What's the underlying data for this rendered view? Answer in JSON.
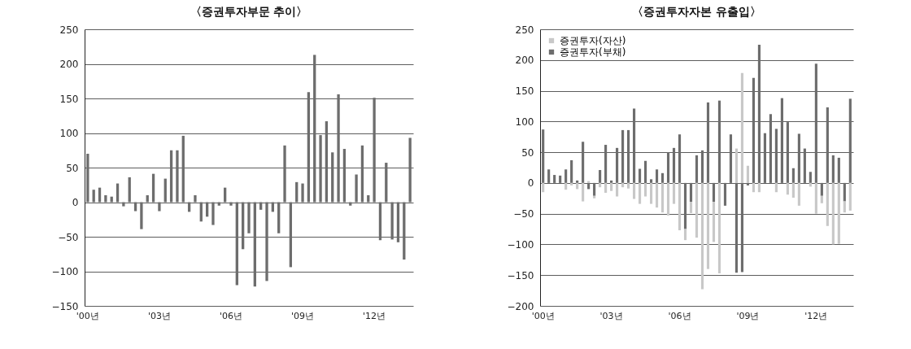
{
  "chart_data": [
    {
      "type": "bar",
      "title": "〈증권투자부문 추이〉",
      "categories": [
        "'00년",
        null,
        null,
        null,
        null,
        null,
        null,
        null,
        null,
        null,
        null,
        null,
        "'03년",
        null,
        null,
        null,
        null,
        null,
        null,
        null,
        null,
        null,
        null,
        null,
        "'06년",
        null,
        null,
        null,
        null,
        null,
        null,
        null,
        null,
        null,
        null,
        null,
        "'09년",
        null,
        null,
        null,
        null,
        null,
        null,
        null,
        null,
        null,
        null,
        null,
        "'12년",
        null,
        null,
        null,
        null,
        null,
        null
      ],
      "values": [
        70,
        18,
        21,
        10,
        8,
        27,
        -6,
        36,
        -13,
        -39,
        10,
        41,
        -13,
        34,
        75,
        75,
        96,
        -14,
        10,
        -28,
        -21,
        -33,
        -5,
        21,
        -5,
        -120,
        -68,
        -45,
        -122,
        -11,
        -114,
        -14,
        -45,
        82,
        -94,
        29,
        27,
        159,
        213,
        97,
        117,
        72,
        156,
        77,
        -5,
        40,
        82,
        10,
        151,
        -55,
        57,
        -54,
        -58,
        -83,
        93
      ],
      "color": "#6d6d6d",
      "ylim": [
        -150,
        250
      ],
      "yticks": [
        -150,
        -100,
        -50,
        0,
        50,
        100,
        150,
        200,
        250
      ],
      "grid": "y"
    },
    {
      "type": "bar",
      "title": "〈증권투자자본 유출입〉",
      "categories": [
        "'00년",
        null,
        null,
        null,
        null,
        null,
        null,
        null,
        null,
        null,
        null,
        null,
        "'03년",
        null,
        null,
        null,
        null,
        null,
        null,
        null,
        null,
        null,
        null,
        null,
        "'06년",
        null,
        null,
        null,
        null,
        null,
        null,
        null,
        null,
        null,
        null,
        null,
        "'09년",
        null,
        null,
        null,
        null,
        null,
        null,
        null,
        null,
        null,
        null,
        null,
        "'12년",
        null,
        null,
        null,
        null,
        null,
        null
      ],
      "stacked": true,
      "series": [
        {
          "name": "증권투자(부채)",
          "color": "#6d6d6d",
          "values": [
            87,
            22,
            13,
            12,
            22,
            37,
            4,
            67,
            -10,
            -21,
            21,
            62,
            4,
            57,
            86,
            86,
            121,
            23,
            36,
            6,
            22,
            16,
            50,
            57,
            79,
            -75,
            -31,
            45,
            53,
            131,
            -31,
            134,
            -37,
            79,
            -146,
            -145,
            -4,
            171,
            225,
            81,
            112,
            88,
            138,
            99,
            24,
            80,
            56,
            18,
            194,
            -21,
            123,
            45,
            41,
            -30,
            137
          ]
        },
        {
          "name": "증권투자(자산)",
          "color": "#c8c8c8",
          "values": [
            -15,
            0,
            0,
            0,
            -11,
            -4,
            -10,
            -30,
            3,
            -4,
            -7,
            -16,
            -13,
            -22,
            -7,
            -9,
            -26,
            -34,
            -22,
            -34,
            -40,
            -48,
            -53,
            -34,
            -77,
            -18,
            -18,
            -89,
            -173,
            -140,
            -65,
            -147,
            0,
            0,
            56,
            179,
            28,
            -15,
            -15,
            0,
            0,
            -15,
            0,
            -19,
            -24,
            -37,
            0,
            -6,
            -50,
            -12,
            -70,
            -100,
            -99,
            -18,
            -45
          ]
        }
      ],
      "ylim": [
        -200,
        250
      ],
      "yticks": [
        -200,
        -150,
        -100,
        -50,
        0,
        50,
        100,
        150,
        200,
        250
      ],
      "grid": "y",
      "legend": "top left"
    }
  ]
}
